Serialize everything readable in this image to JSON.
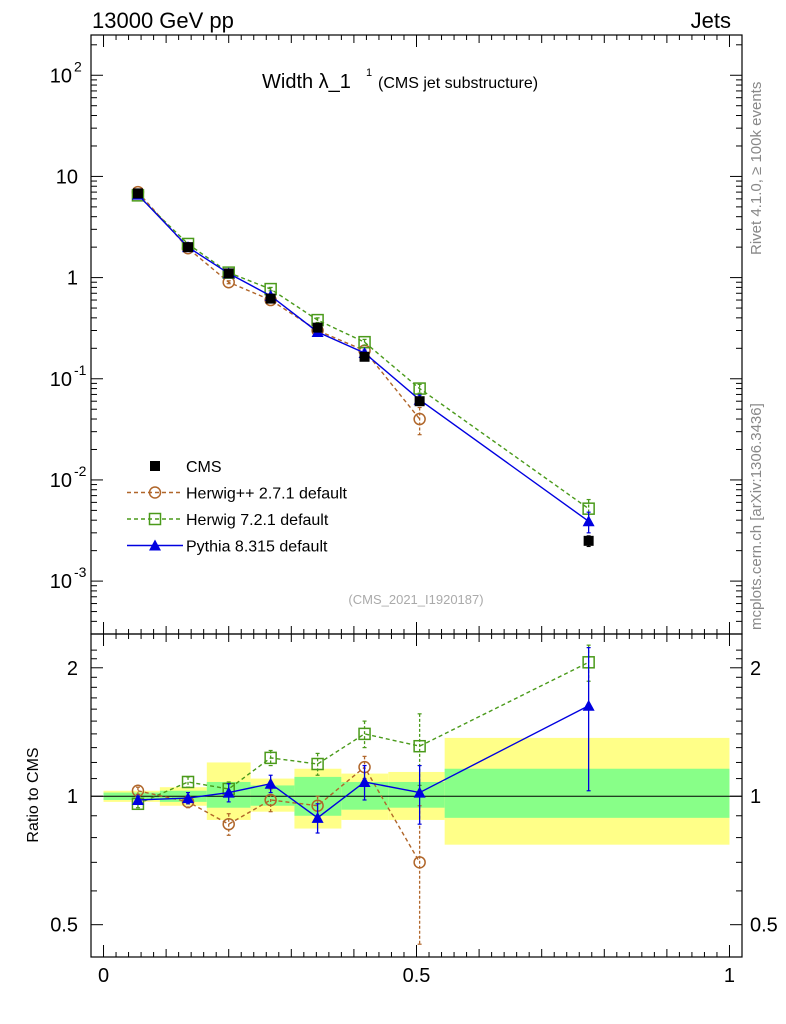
{
  "header": {
    "left": "13000 GeV pp",
    "right": "Jets"
  },
  "side_labels": {
    "rivet": "Rivet 4.1.0, ≥ 100k events",
    "mcplots": "mcplots.cern.ch [arXiv:1306.3436]"
  },
  "chart_data": [
    {
      "type": "scatter",
      "panel": "main",
      "title": "Width λ_1",
      "title_superscript": "1",
      "subtitle": "(CMS jet substructure)",
      "watermark": "(CMS_2021_I1920187)",
      "xlabel": "",
      "ylabel": "",
      "yscale": "log",
      "xlim": [
        -0.02,
        1.02
      ],
      "ylim": [
        0.0003,
        250
      ],
      "y_tick_labels": [
        {
          "value": 0.001,
          "base": "10",
          "exp": "-3"
        },
        {
          "value": 0.01,
          "base": "10",
          "exp": "-2"
        },
        {
          "value": 0.1,
          "base": "10",
          "exp": "-1"
        },
        {
          "value": 1,
          "base": "1",
          "exp": ""
        },
        {
          "value": 10,
          "base": "10",
          "exp": ""
        },
        {
          "value": 100,
          "base": "10",
          "exp": "2"
        }
      ],
      "x": [
        0.055,
        0.135,
        0.2,
        0.267,
        0.342,
        0.417,
        0.505,
        0.775
      ],
      "series": [
        {
          "name": "CMS",
          "style": "data",
          "color": "#000000",
          "values": [
            6.8,
            2.0,
            1.1,
            0.62,
            0.32,
            0.165,
            0.06,
            0.0025
          ],
          "errors": [
            0.15,
            0.05,
            0.03,
            0.02,
            0.02,
            0.01,
            0.005,
            0.0003
          ]
        },
        {
          "name": "Herwig++ 2.7.1 default",
          "style": "circle-dashed",
          "color": "#b0662a",
          "values": [
            7.0,
            1.95,
            0.9,
            0.6,
            0.3,
            0.19,
            0.04,
            null
          ],
          "errors": [
            0.1,
            0.05,
            0.03,
            0.03,
            0.02,
            0.015,
            0.012,
            null
          ]
        },
        {
          "name": "Herwig 7.2.1 default",
          "style": "square-dashed",
          "color": "#4a9a1a",
          "values": [
            6.5,
            2.15,
            1.12,
            0.77,
            0.38,
            0.23,
            0.08,
            0.0052
          ],
          "errors": [
            0.1,
            0.06,
            0.04,
            0.03,
            0.02,
            0.015,
            0.008,
            0.0012
          ]
        },
        {
          "name": "Pythia 8.315 default",
          "style": "triangle-solid",
          "color": "#0000e0",
          "values": [
            6.6,
            2.0,
            1.1,
            0.66,
            0.29,
            0.18,
            0.062,
            0.0039
          ],
          "errors": [
            0.1,
            0.05,
            0.03,
            0.03,
            0.015,
            0.012,
            0.007,
            0.0009
          ]
        }
      ]
    },
    {
      "type": "scatter",
      "panel": "ratio",
      "ylabel": "Ratio to CMS",
      "yscale": "log",
      "xlim": [
        -0.02,
        1.02
      ],
      "ylim": [
        0.42,
        2.4
      ],
      "y_tick_labels": [
        {
          "value": 0.5,
          "label": "0.5"
        },
        {
          "value": 1,
          "label": "1"
        },
        {
          "value": 2,
          "label": "2"
        }
      ],
      "x_tick_labels": [
        {
          "value": 0,
          "label": "0"
        },
        {
          "value": 0.5,
          "label": "0.5"
        },
        {
          "value": 1,
          "label": "1"
        }
      ],
      "bins": [
        0,
        0.09,
        0.165,
        0.235,
        0.305,
        0.38,
        0.455,
        0.545,
        1.0
      ],
      "band_green": [
        [
          0.98,
          1.02
        ],
        [
          0.97,
          1.03
        ],
        [
          0.94,
          1.08
        ],
        [
          0.95,
          1.06
        ],
        [
          0.9,
          1.11
        ],
        [
          0.93,
          1.08
        ],
        [
          0.94,
          1.08
        ],
        [
          0.89,
          1.16
        ]
      ],
      "band_yellow": [
        [
          0.97,
          1.03
        ],
        [
          0.95,
          1.05
        ],
        [
          0.88,
          1.2
        ],
        [
          0.92,
          1.1
        ],
        [
          0.84,
          1.16
        ],
        [
          0.88,
          1.13
        ],
        [
          0.88,
          1.14
        ],
        [
          0.77,
          1.37
        ]
      ],
      "x": [
        0.055,
        0.135,
        0.2,
        0.267,
        0.342,
        0.417,
        0.505,
        0.775
      ],
      "series": [
        {
          "name": "Herwig++ 2.7.1 default",
          "style": "circle-dashed",
          "color": "#b0662a",
          "values": [
            1.03,
            0.97,
            0.86,
            0.98,
            0.95,
            1.17,
            0.7,
            null
          ],
          "errors": [
            0.02,
            0.03,
            0.05,
            0.06,
            0.05,
            0.07,
            0.25,
            null
          ]
        },
        {
          "name": "Herwig 7.2.1 default",
          "style": "square-dashed",
          "color": "#4a9a1a",
          "values": [
            0.96,
            1.08,
            1.04,
            1.23,
            1.19,
            1.4,
            1.31,
            2.06
          ],
          "errors": [
            0.02,
            0.03,
            0.04,
            0.05,
            0.07,
            0.1,
            0.25,
            0.2
          ]
        },
        {
          "name": "Pythia 8.315 default",
          "style": "triangle-solid",
          "color": "#0000e0",
          "values": [
            0.98,
            0.99,
            1.02,
            1.07,
            0.89,
            1.08,
            1.02,
            1.63
          ],
          "errors": [
            0.02,
            0.03,
            0.05,
            0.05,
            0.07,
            0.1,
            0.16,
            0.6
          ]
        }
      ]
    }
  ]
}
